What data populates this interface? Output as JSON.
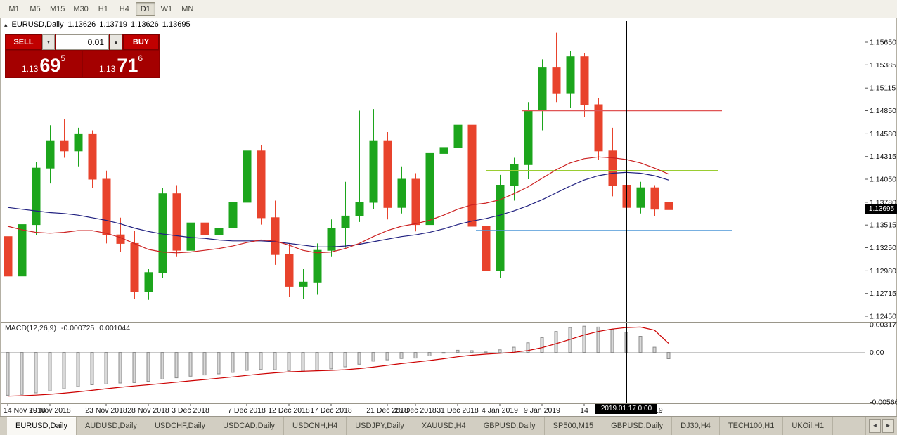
{
  "colors": {
    "bull": "#1CA51C",
    "bear": "#E8432C",
    "ma_fast": "#CC2222",
    "ma_slow": "#202080",
    "macd_signal": "#CC0000",
    "macd_bar_fill": "#D9D9D9",
    "macd_bar_stroke": "#8C8C8C",
    "panel_red": "#C00000",
    "price_box_red": "#A40000",
    "badge_bg": "#000000",
    "badge_fg": "#FFFFFF"
  },
  "toolbar": {
    "timeframes": [
      "M1",
      "M5",
      "M15",
      "M30",
      "H1",
      "H4",
      "D1",
      "W1",
      "MN"
    ],
    "active": "D1"
  },
  "chart": {
    "symbol_label": "EURUSD,Daily",
    "ohlc": {
      "open": "1.13626",
      "high": "1.13719",
      "low": "1.13626",
      "close": "1.13695"
    },
    "price_badge": "1.13695",
    "date_badge": "2019.01.17 0:00"
  },
  "trade_panel": {
    "sell_label": "SELL",
    "buy_label": "BUY",
    "volume": "0.01",
    "sell_price": {
      "head": "1.13",
      "big": "69",
      "sup": "5"
    },
    "buy_price": {
      "head": "1.13",
      "big": "71",
      "sup": "6"
    }
  },
  "macd_panel": {
    "label": "MACD(12,26,9)",
    "macd_value": "-0.000725",
    "signal_value": "0.001044",
    "axis": [
      {
        "v": 0.003177,
        "label": "0.003177"
      },
      {
        "v": 0,
        "label": "0.00"
      },
      {
        "v": -0.005667,
        "label": "-0.005667"
      }
    ]
  },
  "price_axis": [
    {
      "v": 1.1565,
      "label": "1.15650"
    },
    {
      "v": 1.15385,
      "label": "1.15385"
    },
    {
      "v": 1.15115,
      "label": "1.15115"
    },
    {
      "v": 1.1485,
      "label": "1.14850"
    },
    {
      "v": 1.1458,
      "label": "1.14580"
    },
    {
      "v": 1.14315,
      "label": "1.14315"
    },
    {
      "v": 1.1405,
      "label": "1.14050"
    },
    {
      "v": 1.1378,
      "label": "1.13780"
    },
    {
      "v": 1.13515,
      "label": "1.13515"
    },
    {
      "v": 1.1325,
      "label": "1.13250"
    },
    {
      "v": 1.1298,
      "label": "1.12980"
    },
    {
      "v": 1.12715,
      "label": "1.12715"
    },
    {
      "v": 1.1245,
      "label": "1.12450"
    }
  ],
  "date_axis": [
    {
      "i": 0,
      "label": "14 Nov 2018"
    },
    {
      "i": 3,
      "label": "19 Nov 2018"
    },
    {
      "i": 7,
      "label": "23 Nov 2018"
    },
    {
      "i": 10,
      "label": "28 Nov 2018"
    },
    {
      "i": 13,
      "label": "3 Dec 2018"
    },
    {
      "i": 17,
      "label": "7 Dec 2018"
    },
    {
      "i": 20,
      "label": "12 Dec 2018"
    },
    {
      "i": 23,
      "label": "17 Dec 2018"
    },
    {
      "i": 27,
      "label": "21 Dec 2018"
    },
    {
      "i": 29,
      "label": "26 Dec 2018"
    },
    {
      "i": 32,
      "label": "31 Dec 2018"
    },
    {
      "i": 35,
      "label": "4 Jan 2019"
    },
    {
      "i": 38,
      "label": "9 Jan 2019"
    },
    {
      "i": 41,
      "label": "14"
    },
    {
      "i": 46,
      "label": "2019"
    }
  ],
  "tabs": {
    "items": [
      "EURUSD,Daily",
      "AUDUSD,Daily",
      "USDCHF,Daily",
      "USDCAD,Daily",
      "USDCNH,H4",
      "USDJPY,Daily",
      "XAUUSD,H4",
      "GBPUSD,Daily",
      "SP500,M15",
      "GBPUSD,Daily",
      "DJ30,H4",
      "TECH100,H1",
      "UKOil,H1"
    ],
    "active_index": 0
  },
  "chart_data": {
    "type": "candlestick",
    "symbol": "EURUSD",
    "timeframe": "Daily",
    "title": "EURUSD,Daily",
    "y_range": [
      1.1245,
      1.1565
    ],
    "macd_range": [
      -0.005667,
      0.003177
    ],
    "last_price": 1.13695,
    "vline_index": 44,
    "candles": [
      [
        1.1338,
        1.1348,
        1.1266,
        1.1292
      ],
      [
        1.1292,
        1.136,
        1.1285,
        1.1352
      ],
      [
        1.1352,
        1.1425,
        1.134,
        1.1418
      ],
      [
        1.1418,
        1.1468,
        1.14,
        1.145
      ],
      [
        1.145,
        1.1475,
        1.143,
        1.1438
      ],
      [
        1.1438,
        1.1465,
        1.142,
        1.1458
      ],
      [
        1.1458,
        1.1462,
        1.1395,
        1.1405
      ],
      [
        1.1405,
        1.1415,
        1.133,
        1.134
      ],
      [
        1.134,
        1.136,
        1.132,
        1.133
      ],
      [
        1.133,
        1.1345,
        1.1265,
        1.1274
      ],
      [
        1.1274,
        1.13,
        1.1264,
        1.1296
      ],
      [
        1.1296,
        1.1395,
        1.129,
        1.1388
      ],
      [
        1.1388,
        1.1398,
        1.1315,
        1.1322
      ],
      [
        1.1322,
        1.136,
        1.1318,
        1.1354
      ],
      [
        1.1354,
        1.14,
        1.133,
        1.134
      ],
      [
        1.134,
        1.1355,
        1.131,
        1.1348
      ],
      [
        1.1348,
        1.1412,
        1.132,
        1.1378
      ],
      [
        1.1378,
        1.1447,
        1.137,
        1.1438
      ],
      [
        1.1438,
        1.1445,
        1.1352,
        1.136
      ],
      [
        1.136,
        1.138,
        1.1305,
        1.1317
      ],
      [
        1.1317,
        1.133,
        1.1268,
        1.128
      ],
      [
        1.128,
        1.13,
        1.1265,
        1.1285
      ],
      [
        1.1285,
        1.133,
        1.127,
        1.1322
      ],
      [
        1.1322,
        1.1358,
        1.1315,
        1.1348
      ],
      [
        1.1348,
        1.1402,
        1.1325,
        1.1362
      ],
      [
        1.1362,
        1.1485,
        1.1355,
        1.1378
      ],
      [
        1.1378,
        1.1487,
        1.137,
        1.145
      ],
      [
        1.145,
        1.146,
        1.1358,
        1.1372
      ],
      [
        1.1372,
        1.142,
        1.1365,
        1.1405
      ],
      [
        1.1405,
        1.1412,
        1.1344,
        1.1352
      ],
      [
        1.1352,
        1.1442,
        1.134,
        1.1435
      ],
      [
        1.1435,
        1.1472,
        1.1425,
        1.1442
      ],
      [
        1.1442,
        1.1502,
        1.1435,
        1.1468
      ],
      [
        1.1468,
        1.1478,
        1.1338,
        1.135
      ],
      [
        1.135,
        1.1362,
        1.1272,
        1.1298
      ],
      [
        1.1298,
        1.141,
        1.129,
        1.1398
      ],
      [
        1.1398,
        1.143,
        1.138,
        1.1422
      ],
      [
        1.1422,
        1.1495,
        1.1405,
        1.1485
      ],
      [
        1.1485,
        1.1545,
        1.1462,
        1.1535
      ],
      [
        1.1535,
        1.1576,
        1.1495,
        1.1505
      ],
      [
        1.1505,
        1.1555,
        1.1488,
        1.1548
      ],
      [
        1.1548,
        1.1552,
        1.1478,
        1.1492
      ],
      [
        1.1492,
        1.15,
        1.1428,
        1.1438
      ],
      [
        1.1438,
        1.1465,
        1.1385,
        1.1398
      ],
      [
        1.1398,
        1.141,
        1.136,
        1.1372
      ],
      [
        1.1372,
        1.1402,
        1.1365,
        1.1395
      ],
      [
        1.1395,
        1.1398,
        1.1362,
        1.137
      ],
      [
        1.1378,
        1.1392,
        1.1355,
        1.13695
      ]
    ],
    "ma_red": [
      1.135,
      1.1346,
      1.1343,
      1.1342,
      1.1343,
      1.1345,
      1.1345,
      1.1342,
      1.1337,
      1.133,
      1.1323,
      1.132,
      1.1319,
      1.132,
      1.1322,
      1.1324,
      1.1327,
      1.1331,
      1.1334,
      1.1333,
      1.1328,
      1.1322,
      1.1319,
      1.132,
      1.1324,
      1.133,
      1.1338,
      1.1345,
      1.135,
      1.1353,
      1.1357,
      1.1363,
      1.137,
      1.1375,
      1.1377,
      1.1381,
      1.1388,
      1.1396,
      1.1406,
      1.1416,
      1.1424,
      1.1429,
      1.1431,
      1.143,
      1.1428,
      1.1424,
      1.1418,
      1.1411
    ],
    "ma_blue": [
      1.1372,
      1.137,
      1.1368,
      1.1366,
      1.1365,
      1.1363,
      1.136,
      1.1357,
      1.1353,
      1.1348,
      1.1344,
      1.1341,
      1.1339,
      1.1337,
      1.1336,
      1.1334,
      1.1333,
      1.1333,
      1.1333,
      1.1332,
      1.133,
      1.1328,
      1.1326,
      1.1326,
      1.1327,
      1.1329,
      1.1332,
      1.1335,
      1.1338,
      1.134,
      1.1343,
      1.1347,
      1.1352,
      1.1356,
      1.1359,
      1.1363,
      1.1368,
      1.1374,
      1.1381,
      1.1389,
      1.1397,
      1.1404,
      1.1409,
      1.1412,
      1.1413,
      1.1412,
      1.1409,
      1.1404
    ],
    "macd_histogram": [
      -0.0049,
      -0.0048,
      -0.00462,
      -0.0044,
      -0.00415,
      -0.0039,
      -0.0037,
      -0.0036,
      -0.0035,
      -0.00345,
      -0.0033,
      -0.00305,
      -0.0029,
      -0.00272,
      -0.00258,
      -0.00245,
      -0.00228,
      -0.00205,
      -0.00195,
      -0.00198,
      -0.0021,
      -0.00215,
      -0.00205,
      -0.00188,
      -0.00165,
      -0.00135,
      -0.001,
      -0.00085,
      -0.0007,
      -0.00065,
      -0.0004,
      -0.0001,
      0.00025,
      0.0002,
      5e-05,
      0.0003,
      0.0006,
      0.0011,
      0.0017,
      0.0024,
      0.00285,
      0.003,
      0.0029,
      0.00265,
      0.0023,
      0.00185,
      0.0006,
      -0.000725
    ],
    "macd_signal": [
      -0.005,
      -0.00495,
      -0.00488,
      -0.00478,
      -0.00465,
      -0.0045,
      -0.00433,
      -0.00415,
      -0.00398,
      -0.00383,
      -0.0037,
      -0.00355,
      -0.0034,
      -0.00325,
      -0.0031,
      -0.00295,
      -0.0028,
      -0.00263,
      -0.00247,
      -0.00233,
      -0.00222,
      -0.00215,
      -0.0021,
      -0.00205,
      -0.00198,
      -0.00185,
      -0.00168,
      -0.00148,
      -0.00128,
      -0.0011,
      -0.00092,
      -0.00072,
      -0.0005,
      -0.00032,
      -0.0002,
      -0.0001,
      2e-05,
      0.00022,
      0.00055,
      0.001,
      0.0015,
      0.002,
      0.0024,
      0.00268,
      0.00285,
      0.0029,
      0.00255,
      0.001044
    ],
    "hlines": [
      {
        "price": 1.1485,
        "color": "#E05555",
        "from": 36.6,
        "to": 50.8
      },
      {
        "price": 1.1415,
        "color": "#9ACD32",
        "from": 34.0,
        "to": 50.5
      },
      {
        "price": 1.1345,
        "color": "#4C96D7",
        "from": 33.3,
        "to": 51.5
      }
    ]
  }
}
